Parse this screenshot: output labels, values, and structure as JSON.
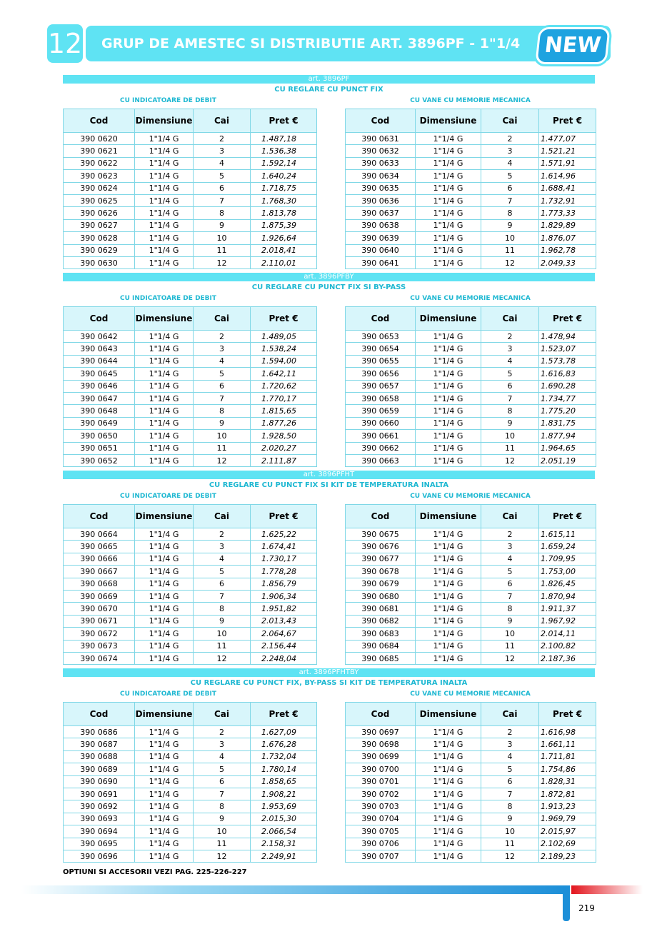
{
  "header": {
    "number": "12",
    "title": "GRUP DE AMESTEC SI DISTRIBUTIE ART. 3896PF - 1\"1/4",
    "badge": "NEW"
  },
  "table_header": [
    "Cod",
    "Dimensiune",
    "Cai",
    "Pret €"
  ],
  "sections": [
    {
      "art": "art. 3896PF",
      "subtitle": "CU REGLARE CU PUNCT FIX",
      "tables": [
        {
          "caption": "CU INDICATOARE DE DEBIT",
          "rows": [
            [
              "390 0620",
              "1\"1/4 G",
              "2",
              "1.487,18"
            ],
            [
              "390 0621",
              "1\"1/4 G",
              "3",
              "1.536,38"
            ],
            [
              "390 0622",
              "1\"1/4 G",
              "4",
              "1.592,14"
            ],
            [
              "390 0623",
              "1\"1/4 G",
              "5",
              "1.640,24"
            ],
            [
              "390 0624",
              "1\"1/4 G",
              "6",
              "1.718,75"
            ],
            [
              "390 0625",
              "1\"1/4 G",
              "7",
              "1.768,30"
            ],
            [
              "390 0626",
              "1\"1/4 G",
              "8",
              "1.813,78"
            ],
            [
              "390 0627",
              "1\"1/4 G",
              "9",
              "1.875,39"
            ],
            [
              "390 0628",
              "1\"1/4 G",
              "10",
              "1.926,64"
            ],
            [
              "390 0629",
              "1\"1/4 G",
              "11",
              "2.018,41"
            ],
            [
              "390 0630",
              "1\"1/4 G",
              "12",
              "2.110,01"
            ]
          ]
        },
        {
          "caption": "CU VANE CU MEMORIE MECANICA",
          "rows": [
            [
              "390 0631",
              "1\"1/4 G",
              "2",
              "1.477,07"
            ],
            [
              "390 0632",
              "1\"1/4 G",
              "3",
              "1.521,21"
            ],
            [
              "390 0633",
              "1\"1/4 G",
              "4",
              "1.571,91"
            ],
            [
              "390 0634",
              "1\"1/4 G",
              "5",
              "1.614,96"
            ],
            [
              "390 0635",
              "1\"1/4 G",
              "6",
              "1.688,41"
            ],
            [
              "390 0636",
              "1\"1/4 G",
              "7",
              "1.732,91"
            ],
            [
              "390 0637",
              "1\"1/4 G",
              "8",
              "1.773,33"
            ],
            [
              "390 0638",
              "1\"1/4 G",
              "9",
              "1.829,89"
            ],
            [
              "390 0639",
              "1\"1/4 G",
              "10",
              "1.876,07"
            ],
            [
              "390 0640",
              "1\"1/4 G",
              "11",
              "1.962,78"
            ],
            [
              "390 0641",
              "1\"1/4 G",
              "12",
              "2.049,33"
            ]
          ]
        }
      ]
    },
    {
      "art": "art. 3896PFBY",
      "subtitle": "CU REGLARE CU PUNCT FIX SI BY-PASS",
      "tables": [
        {
          "caption": "CU INDICATOARE DE DEBIT",
          "rows": [
            [
              "390 0642",
              "1\"1/4 G",
              "2",
              "1.489,05"
            ],
            [
              "390 0643",
              "1\"1/4 G",
              "3",
              "1.538,24"
            ],
            [
              "390 0644",
              "1\"1/4 G",
              "4",
              "1.594,00"
            ],
            [
              "390 0645",
              "1\"1/4 G",
              "5",
              "1.642,11"
            ],
            [
              "390 0646",
              "1\"1/4 G",
              "6",
              "1.720,62"
            ],
            [
              "390 0647",
              "1\"1/4 G",
              "7",
              "1.770,17"
            ],
            [
              "390 0648",
              "1\"1/4 G",
              "8",
              "1.815,65"
            ],
            [
              "390 0649",
              "1\"1/4 G",
              "9",
              "1.877,26"
            ],
            [
              "390 0650",
              "1\"1/4 G",
              "10",
              "1.928,50"
            ],
            [
              "390 0651",
              "1\"1/4 G",
              "11",
              "2.020,27"
            ],
            [
              "390 0652",
              "1\"1/4 G",
              "12",
              "2.111,87"
            ]
          ]
        },
        {
          "caption": "CU VANE CU MEMORIE MECANICA",
          "rows": [
            [
              "390 0653",
              "1\"1/4 G",
              "2",
              "1.478,94"
            ],
            [
              "390 0654",
              "1\"1/4 G",
              "3",
              "1.523,07"
            ],
            [
              "390 0655",
              "1\"1/4 G",
              "4",
              "1.573,78"
            ],
            [
              "390 0656",
              "1\"1/4 G",
              "5",
              "1.616,83"
            ],
            [
              "390 0657",
              "1\"1/4 G",
              "6",
              "1.690,28"
            ],
            [
              "390 0658",
              "1\"1/4 G",
              "7",
              "1.734,77"
            ],
            [
              "390 0659",
              "1\"1/4 G",
              "8",
              "1.775,20"
            ],
            [
              "390 0660",
              "1\"1/4 G",
              "9",
              "1.831,75"
            ],
            [
              "390 0661",
              "1\"1/4 G",
              "10",
              "1.877,94"
            ],
            [
              "390 0662",
              "1\"1/4 G",
              "11",
              "1.964,65"
            ],
            [
              "390 0663",
              "1\"1/4 G",
              "12",
              "2.051,19"
            ]
          ]
        }
      ]
    },
    {
      "art": "art. 3896PFHT",
      "subtitle": "CU REGLARE CU PUNCT FIX SI KIT DE TEMPERATURA INALTA",
      "tables": [
        {
          "caption": "CU INDICATOARE DE DEBIT",
          "rows": [
            [
              "390 0664",
              "1\"1/4 G",
              "2",
              "1.625,22"
            ],
            [
              "390 0665",
              "1\"1/4 G",
              "3",
              "1.674,41"
            ],
            [
              "390 0666",
              "1\"1/4 G",
              "4",
              "1.730,17"
            ],
            [
              "390 0667",
              "1\"1/4 G",
              "5",
              "1.778,28"
            ],
            [
              "390 0668",
              "1\"1/4 G",
              "6",
              "1.856,79"
            ],
            [
              "390 0669",
              "1\"1/4 G",
              "7",
              "1.906,34"
            ],
            [
              "390 0670",
              "1\"1/4 G",
              "8",
              "1.951,82"
            ],
            [
              "390 0671",
              "1\"1/4 G",
              "9",
              "2.013,43"
            ],
            [
              "390 0672",
              "1\"1/4 G",
              "10",
              "2.064,67"
            ],
            [
              "390 0673",
              "1\"1/4 G",
              "11",
              "2.156,44"
            ],
            [
              "390 0674",
              "1\"1/4 G",
              "12",
              "2.248,04"
            ]
          ]
        },
        {
          "caption": "CU VANE CU MEMORIE MECANICA",
          "rows": [
            [
              "390 0675",
              "1\"1/4 G",
              "2",
              "1.615,11"
            ],
            [
              "390 0676",
              "1\"1/4 G",
              "3",
              "1.659,24"
            ],
            [
              "390 0677",
              "1\"1/4 G",
              "4",
              "1.709,95"
            ],
            [
              "390 0678",
              "1\"1/4 G",
              "5",
              "1.753,00"
            ],
            [
              "390 0679",
              "1\"1/4 G",
              "6",
              "1.826,45"
            ],
            [
              "390 0680",
              "1\"1/4 G",
              "7",
              "1.870,94"
            ],
            [
              "390 0681",
              "1\"1/4 G",
              "8",
              "1.911,37"
            ],
            [
              "390 0682",
              "1\"1/4 G",
              "9",
              "1.967,92"
            ],
            [
              "390 0683",
              "1\"1/4 G",
              "10",
              "2.014,11"
            ],
            [
              "390 0684",
              "1\"1/4 G",
              "11",
              "2.100,82"
            ],
            [
              "390 0685",
              "1\"1/4 G",
              "12",
              "2.187,36"
            ]
          ]
        }
      ]
    },
    {
      "art": "art. 3896PFHTBY",
      "subtitle": "CU REGLARE CU PUNCT FIX, BY-PASS SI KIT DE TEMPERATURA INALTA",
      "tables": [
        {
          "caption": "CU INDICATOARE DE DEBIT",
          "rows": [
            [
              "390 0686",
              "1\"1/4 G",
              "2",
              "1.627,09"
            ],
            [
              "390 0687",
              "1\"1/4 G",
              "3",
              "1.676,28"
            ],
            [
              "390 0688",
              "1\"1/4 G",
              "4",
              "1.732,04"
            ],
            [
              "390 0689",
              "1\"1/4 G",
              "5",
              "1.780,14"
            ],
            [
              "390 0690",
              "1\"1/4 G",
              "6",
              "1.858,65"
            ],
            [
              "390 0691",
              "1\"1/4 G",
              "7",
              "1.908,21"
            ],
            [
              "390 0692",
              "1\"1/4 G",
              "8",
              "1.953,69"
            ],
            [
              "390 0693",
              "1\"1/4 G",
              "9",
              "2.015,30"
            ],
            [
              "390 0694",
              "1\"1/4 G",
              "10",
              "2.066,54"
            ],
            [
              "390 0695",
              "1\"1/4 G",
              "11",
              "2.158,31"
            ],
            [
              "390 0696",
              "1\"1/4 G",
              "12",
              "2.249,91"
            ]
          ]
        },
        {
          "caption": "CU VANE CU MEMORIE MECANICA",
          "rows": [
            [
              "390 0697",
              "1\"1/4 G",
              "2",
              "1.616,98"
            ],
            [
              "390 0698",
              "1\"1/4 G",
              "3",
              "1.661,11"
            ],
            [
              "390 0699",
              "1\"1/4 G",
              "4",
              "1.711,81"
            ],
            [
              "390 0700",
              "1\"1/4 G",
              "5",
              "1.754,86"
            ],
            [
              "390 0701",
              "1\"1/4 G",
              "6",
              "1.828,31"
            ],
            [
              "390 0702",
              "1\"1/4 G",
              "7",
              "1.872,81"
            ],
            [
              "390 0703",
              "1\"1/4 G",
              "8",
              "1.913,23"
            ],
            [
              "390 0704",
              "1\"1/4 G",
              "9",
              "1.969,79"
            ],
            [
              "390 0705",
              "1\"1/4 G",
              "10",
              "2.015,97"
            ],
            [
              "390 0706",
              "1\"1/4 G",
              "11",
              "2.102,69"
            ],
            [
              "390 0707",
              "1\"1/4 G",
              "12",
              "2.189,23"
            ]
          ]
        }
      ]
    }
  ],
  "footer": {
    "note": "OPTIUNI SI ACCESORII VEZI PAG. 225-226-227",
    "page": "219"
  }
}
